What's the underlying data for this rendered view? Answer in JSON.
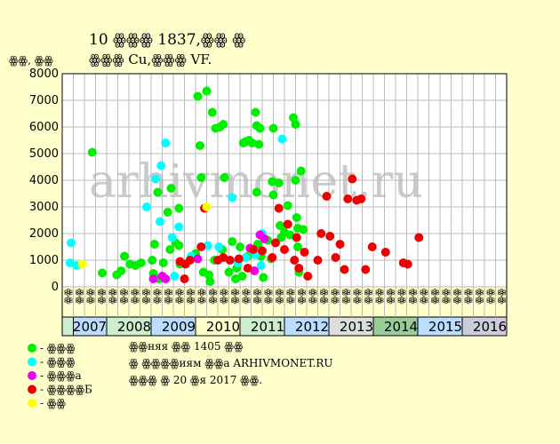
{
  "title": "10 ꙮꙮꙮ 1837,ꙮꙮ ꙮ",
  "subtitle": "ꙮꙮꙮ Cu,ꙮꙮꙮ VF.",
  "watermark": "arhivmonet.ru",
  "colors": {
    "background": "#ffffcc",
    "plot_bg": "#ffffff",
    "grid": "#bbbbbb",
    "green": "#00ee00",
    "cyan": "#00ffff",
    "magenta": "#ee00ee",
    "red": "#ee0000",
    "yellow": "#ffff00"
  },
  "legend": [
    {
      "label": "- ꙮꙮꙮ",
      "color": "#00ee00"
    },
    {
      "label": "- ꙮꙮꙮ",
      "color": "#00ffff"
    },
    {
      "label": "- ꙮꙮꙮа",
      "color": "#ee00ee"
    },
    {
      "label": "- ꙮꙮꙮꙮБ",
      "color": "#ee0000"
    },
    {
      "label": "- ꙮꙮ",
      "color": "#ffff00"
    }
  ],
  "notes": [
    "ꙮꙮняя ꙮꙮ 1405 ꙮꙮ",
    "ꙮ ꙮꙮꙮꙮиям ꙮꙮа ARHIVMONET.RU",
    "ꙮꙮꙮ ꙮ 20 ꙮя 2017 ꙮꙮ."
  ],
  "chart_data": {
    "type": "scatter",
    "ylabel": "ꙮꙮ, ꙮꙮ",
    "ylim": [
      0,
      8000
    ],
    "yticks": [
      0,
      1000,
      2000,
      3000,
      4000,
      5000,
      6000,
      7000,
      8000
    ],
    "grid": true,
    "legend_position": "bottom-left",
    "x_unit": "quarter index from start of 2007 (0 = Q1 2007)",
    "years": [
      "2007",
      "2008",
      "2009",
      "2010",
      "2011",
      "2012",
      "2013",
      "2014",
      "2015",
      "2016"
    ],
    "year_colors": [
      "#bbddff",
      "#cceecc",
      "#bbddff",
      "#ffffcc",
      "#cceecc",
      "#bbddff",
      "#dddddd",
      "#99cc99",
      "#bbddff",
      "#ccccdd"
    ],
    "quarter_labels": [
      "ꙮꙮ",
      "ꙮꙮ",
      "ꙮꙮ",
      "ꙮꙮ"
    ],
    "x_range": [
      -0.3,
      39.7
    ],
    "series": [
      {
        "name": "ꙮꙮꙮ",
        "color": "#00ee00",
        "points": [
          [
            2.2,
            5050
          ],
          [
            3.1,
            520
          ],
          [
            4.4,
            450
          ],
          [
            4.8,
            600
          ],
          [
            5.1,
            1150
          ],
          [
            5.6,
            850
          ],
          [
            6.1,
            800
          ],
          [
            6.6,
            900
          ],
          [
            7.6,
            1000
          ],
          [
            7.8,
            1600
          ],
          [
            7.7,
            500
          ],
          [
            8.1,
            3550
          ],
          [
            8.2,
            300
          ],
          [
            8.6,
            900
          ],
          [
            9.0,
            2800
          ],
          [
            9.2,
            1400
          ],
          [
            9.3,
            3700
          ],
          [
            9.7,
            1650
          ],
          [
            10.0,
            1550
          ],
          [
            10.0,
            2950
          ],
          [
            10.1,
            850
          ],
          [
            11.5,
            1250
          ],
          [
            11.7,
            7150
          ],
          [
            11.9,
            5300
          ],
          [
            12.0,
            4100
          ],
          [
            12.2,
            550
          ],
          [
            12.5,
            7350
          ],
          [
            12.7,
            450
          ],
          [
            12.8,
            200
          ],
          [
            13.0,
            6550
          ],
          [
            13.2,
            1000
          ],
          [
            13.3,
            5950
          ],
          [
            13.7,
            6000
          ],
          [
            13.9,
            1400
          ],
          [
            14.0,
            6100
          ],
          [
            14.1,
            4100
          ],
          [
            14.5,
            550
          ],
          [
            14.8,
            1700
          ],
          [
            15.1,
            300
          ],
          [
            15.2,
            700
          ],
          [
            15.5,
            1500
          ],
          [
            15.7,
            400
          ],
          [
            15.8,
            5400
          ],
          [
            16.0,
            5450
          ],
          [
            16.2,
            1150
          ],
          [
            16.3,
            5500
          ],
          [
            16.6,
            5400
          ],
          [
            16.9,
            6550
          ],
          [
            17.0,
            6050
          ],
          [
            17.0,
            3550
          ],
          [
            17.2,
            5350
          ],
          [
            17.3,
            5950
          ],
          [
            17.4,
            1150
          ],
          [
            17.6,
            350
          ],
          [
            17.1,
            1600
          ],
          [
            18.0,
            1750
          ],
          [
            18.3,
            1050
          ],
          [
            18.4,
            3950
          ],
          [
            18.5,
            5950
          ],
          [
            18.5,
            3450
          ],
          [
            19.0,
            3900
          ],
          [
            19.1,
            2300
          ],
          [
            19.2,
            1850
          ],
          [
            19.5,
            2050
          ],
          [
            19.8,
            3050
          ],
          [
            20.0,
            1950
          ],
          [
            20.3,
            6350
          ],
          [
            20.5,
            6100
          ],
          [
            20.5,
            4000
          ],
          [
            20.6,
            2600
          ],
          [
            20.7,
            1500
          ],
          [
            20.7,
            2200
          ],
          [
            20.8,
            550
          ],
          [
            21.0,
            4350
          ],
          [
            21.2,
            2150
          ]
        ]
      },
      {
        "name": "ꙮꙮꙮ",
        "color": "#00ffff",
        "points": [
          [
            0.2,
            900
          ],
          [
            0.3,
            1650
          ],
          [
            0.8,
            800
          ],
          [
            7.1,
            3000
          ],
          [
            7.9,
            4050
          ],
          [
            8.3,
            2450
          ],
          [
            8.4,
            4550
          ],
          [
            8.8,
            5400
          ],
          [
            9.4,
            1850
          ],
          [
            9.6,
            400
          ],
          [
            10.0,
            2250
          ],
          [
            11.1,
            1150
          ],
          [
            12.6,
            1550
          ],
          [
            13.6,
            1500
          ],
          [
            14.8,
            3350
          ],
          [
            15.3,
            900
          ],
          [
            16.0,
            1100
          ],
          [
            16.5,
            1400
          ],
          [
            16.9,
            1200
          ],
          [
            17.4,
            800
          ],
          [
            17.5,
            2000
          ],
          [
            19.3,
            5550
          ]
        ]
      },
      {
        "name": "ꙮꙮꙮа",
        "color": "#ee00ee",
        "points": [
          [
            7.7,
            300
          ],
          [
            8.5,
            400
          ],
          [
            8.8,
            300
          ],
          [
            11.7,
            1050
          ],
          [
            16.4,
            1450
          ],
          [
            16.8,
            600
          ],
          [
            17.3,
            1950
          ],
          [
            17.7,
            1800
          ]
        ]
      },
      {
        "name": "ꙮꙮꙮꙮБ",
        "color": "#ee0000",
        "points": [
          [
            10.1,
            950
          ],
          [
            10.5,
            300
          ],
          [
            10.6,
            850
          ],
          [
            11.0,
            1000
          ],
          [
            12.0,
            1500
          ],
          [
            12.3,
            2950
          ],
          [
            13.5,
            1000
          ],
          [
            14.0,
            1100
          ],
          [
            14.6,
            1000
          ],
          [
            15.4,
            1050
          ],
          [
            16.2,
            700
          ],
          [
            16.7,
            1400
          ],
          [
            17.5,
            1350
          ],
          [
            18.4,
            1100
          ],
          [
            18.7,
            1650
          ],
          [
            19.0,
            2950
          ],
          [
            19.5,
            1400
          ],
          [
            19.8,
            2350
          ],
          [
            20.4,
            1000
          ],
          [
            20.6,
            1850
          ],
          [
            20.8,
            700
          ],
          [
            21.3,
            1300
          ],
          [
            21.6,
            400
          ],
          [
            22.5,
            1000
          ],
          [
            22.8,
            2000
          ],
          [
            23.3,
            3400
          ],
          [
            23.6,
            1900
          ],
          [
            24.1,
            1100
          ],
          [
            24.5,
            1600
          ],
          [
            24.9,
            650
          ],
          [
            25.2,
            3300
          ],
          [
            25.6,
            4050
          ],
          [
            26.0,
            3250
          ],
          [
            26.4,
            3300
          ],
          [
            26.8,
            650
          ],
          [
            27.4,
            1500
          ],
          [
            28.6,
            1300
          ],
          [
            30.2,
            900
          ],
          [
            30.6,
            850
          ],
          [
            31.6,
            1850
          ]
        ]
      },
      {
        "name": "ꙮꙮ",
        "color": "#ffff00",
        "points": [
          [
            1.3,
            850
          ],
          [
            12.5,
            3000
          ]
        ]
      }
    ]
  }
}
